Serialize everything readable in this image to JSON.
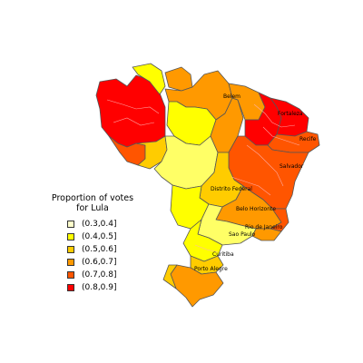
{
  "legend": {
    "title_line1": "Proportion of votes",
    "title_line2": "for Lula",
    "items": [
      {
        "label": "(0.3,0.4]",
        "color": "#ffffcc"
      },
      {
        "label": "(0.4,0.5]",
        "color": "#ffff00"
      },
      {
        "label": "(0.5,0.6]",
        "color": "#ffcc00"
      },
      {
        "label": "(0.6,0.7]",
        "color": "#ff9900"
      },
      {
        "label": "(0.7,0.8]",
        "color": "#ff5500"
      },
      {
        "label": "(0.8,0.9]",
        "color": "#ff0000"
      }
    ]
  },
  "cities": {
    "belem": "Belem",
    "fortaleza": "Fortaleza",
    "recife": "Recife",
    "salvador": "Salvador",
    "distrito_federal": "Distrito Federal",
    "belo_horizonte": "Belo Horizonte",
    "rio_de_janeiro": "Rio de Janeiro",
    "sao_paulo": "Sao Paulo",
    "curitiba": "Curitiba",
    "porto_alegre": "Porto Alegre"
  }
}
